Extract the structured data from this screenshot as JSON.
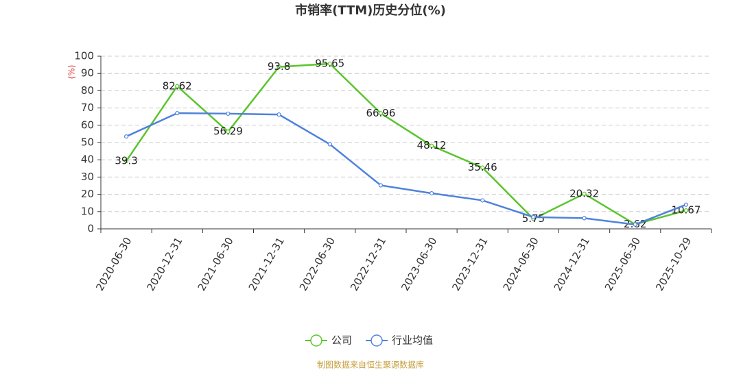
{
  "chart_data": {
    "type": "line",
    "title": "市销率(TTM)历史分位(%)",
    "y_label": "(%)",
    "source": "制图数据来自恒生聚源数据库",
    "categories": [
      "2020-06-30",
      "2020-12-31",
      "2021-06-30",
      "2021-12-31",
      "2022-06-30",
      "2022-12-31",
      "2023-06-30",
      "2023-12-31",
      "2024-06-30",
      "2024-12-31",
      "2025-06-30",
      "2025-10-29"
    ],
    "series": [
      {
        "name": "公司",
        "color": "#5ac52c",
        "values": [
          39.3,
          82.62,
          56.29,
          93.8,
          95.65,
          66.96,
          48.12,
          35.46,
          5.75,
          20.32,
          2.62,
          10.67
        ],
        "labels": true
      },
      {
        "name": "行业均值",
        "color": "#4f82dc",
        "values": [
          53.5,
          67,
          66.7,
          66.2,
          49,
          25.2,
          20.6,
          16.5,
          6.8,
          6.2,
          2.5,
          14
        ],
        "labels": false
      }
    ],
    "ylim": [
      0,
      100
    ],
    "yticks": [
      0,
      10,
      20,
      30,
      40,
      50,
      60,
      70,
      80,
      90,
      100
    ],
    "grid": true
  }
}
